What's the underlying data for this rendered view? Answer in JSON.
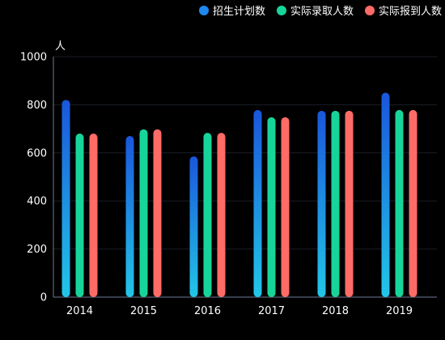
{
  "chart_data": {
    "type": "bar",
    "ylabel": "人",
    "ylim": [
      0,
      1000
    ],
    "yticks": [
      0,
      200,
      400,
      600,
      800,
      1000
    ],
    "categories": [
      "2014",
      "2015",
      "2016",
      "2017",
      "2018",
      "2019"
    ],
    "series": [
      {
        "name": "招生计划数",
        "values": [
          820,
          670,
          585,
          778,
          775,
          850
        ],
        "color_top": "#1a56db",
        "color_bottom": "#22c6e8"
      },
      {
        "name": "实际录取人数",
        "values": [
          680,
          698,
          683,
          748,
          775,
          778
        ],
        "color": "#17d59a"
      },
      {
        "name": "实际报到人数",
        "values": [
          680,
          698,
          683,
          748,
          775,
          778
        ],
        "color": "#ff6b67"
      }
    ],
    "legend_position": "top-right",
    "grid": true
  },
  "colors": {
    "background": "#000000",
    "axis": "#6e7a99",
    "grid": "#1a1d26",
    "text": "#ffffff"
  }
}
